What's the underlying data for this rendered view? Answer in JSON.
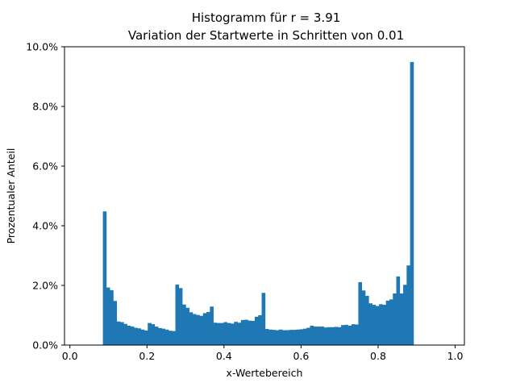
{
  "chart_data": {
    "type": "bar",
    "title": [
      "Histogramm für r = 3.91",
      "Variation der Startwerte in Schritten von 0.01"
    ],
    "xlabel": "x-Wertebereich",
    "ylabel": "Prozentualer Anteil",
    "xlim": [
      -0.014,
      1.024
    ],
    "ylim": [
      0,
      0.1
    ],
    "grid": false,
    "color": "#1f77b4",
    "xticks": [
      {
        "value": 0.0,
        "label": "0.0"
      },
      {
        "value": 0.2,
        "label": "0.2"
      },
      {
        "value": 0.4,
        "label": "0.4"
      },
      {
        "value": 0.6,
        "label": "0.6"
      },
      {
        "value": 0.8,
        "label": "0.8"
      },
      {
        "value": 1.0,
        "label": "1.0"
      }
    ],
    "yticks": [
      {
        "value": 0.0,
        "label": "0.0%"
      },
      {
        "value": 0.02,
        "label": "2.0%"
      },
      {
        "value": 0.04,
        "label": "4.0%"
      },
      {
        "value": 0.06,
        "label": "6.0%"
      },
      {
        "value": 0.08,
        "label": "8.0%"
      },
      {
        "value": 0.1,
        "label": "10.0%"
      }
    ],
    "bin_start": 0.0856,
    "bin_width": 0.00896,
    "values": [
      0.0448,
      0.0193,
      0.0184,
      0.0148,
      0.0079,
      0.0077,
      0.0071,
      0.0065,
      0.0062,
      0.0058,
      0.0056,
      0.0052,
      0.0049,
      0.0074,
      0.007,
      0.0062,
      0.0057,
      0.0055,
      0.0052,
      0.0048,
      0.0047,
      0.0203,
      0.0191,
      0.0136,
      0.0125,
      0.011,
      0.0104,
      0.0101,
      0.0098,
      0.0107,
      0.0111,
      0.0129,
      0.0075,
      0.0074,
      0.0074,
      0.0077,
      0.0074,
      0.0072,
      0.0078,
      0.0075,
      0.0084,
      0.0085,
      0.0082,
      0.0081,
      0.0095,
      0.01,
      0.0175,
      0.0054,
      0.0052,
      0.0051,
      0.005,
      0.0052,
      0.005,
      0.005,
      0.0051,
      0.0051,
      0.0052,
      0.0053,
      0.0055,
      0.0058,
      0.0065,
      0.0062,
      0.0062,
      0.0062,
      0.0059,
      0.006,
      0.006,
      0.0061,
      0.006,
      0.0067,
      0.0068,
      0.0065,
      0.007,
      0.0069,
      0.0211,
      0.0183,
      0.0165,
      0.014,
      0.0135,
      0.0131,
      0.0137,
      0.0135,
      0.0149,
      0.0153,
      0.0173,
      0.023,
      0.0173,
      0.0202,
      0.0267,
      0.0949
    ]
  }
}
